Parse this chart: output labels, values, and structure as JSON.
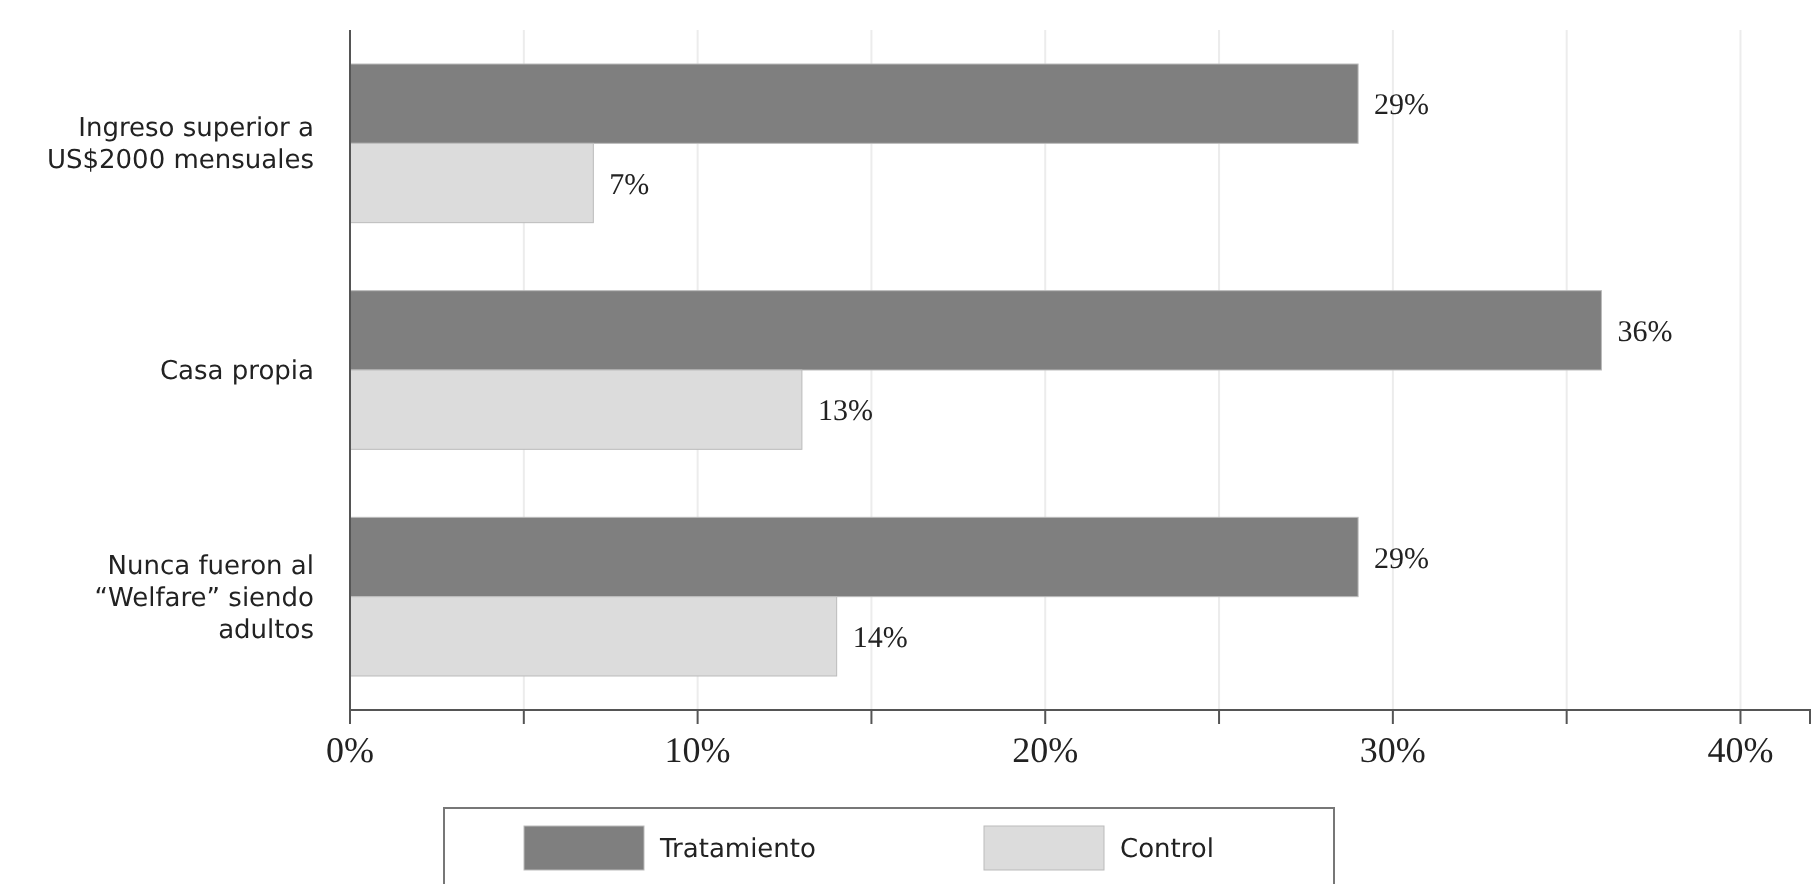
{
  "chart_data": {
    "type": "bar",
    "orientation": "horizontal",
    "categories": [
      "Ingreso superior a US$2000 mensuales",
      "Casa propia",
      "Nunca fueron al “Welfare” siendo adultos"
    ],
    "series": [
      {
        "name": "Tratamiento",
        "color": "#7f7f7f",
        "values": [
          29,
          36,
          29
        ]
      },
      {
        "name": "Control",
        "color": "#dcdcdc",
        "values": [
          7,
          13,
          14
        ]
      }
    ],
    "xlim": [
      0,
      42
    ],
    "xticks": [
      {
        "value": 0,
        "label": "0%"
      },
      {
        "value": 5,
        "label": null
      },
      {
        "value": 10,
        "label": "10%"
      },
      {
        "value": 15,
        "label": null
      },
      {
        "value": 20,
        "label": "20%"
      },
      {
        "value": 25,
        "label": null
      },
      {
        "value": 30,
        "label": "30%"
      },
      {
        "value": 35,
        "label": null
      },
      {
        "value": 40,
        "label": "40%"
      }
    ],
    "grid": "x",
    "legend": "bottom",
    "value_labels": [
      [
        "29%",
        "36%",
        "29%"
      ],
      [
        "7%",
        "13%",
        "14%"
      ]
    ]
  }
}
